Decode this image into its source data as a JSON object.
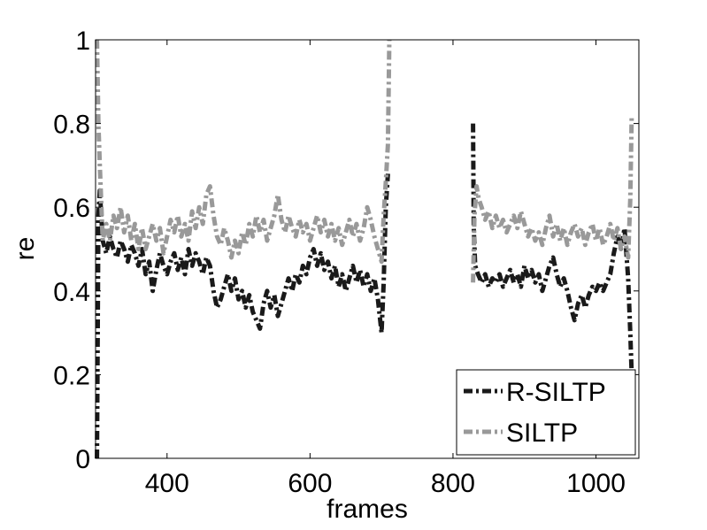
{
  "chart_data": {
    "type": "line",
    "title": "",
    "xlabel": "frames",
    "ylabel": "re",
    "xlim": [
      300,
      1060
    ],
    "ylim": [
      0,
      1
    ],
    "xticks": [
      400,
      600,
      800,
      1000
    ],
    "yticks": [
      0,
      0.2,
      0.4,
      0.6,
      0.8,
      1
    ],
    "xtick_labels": [
      "400",
      "600",
      "800",
      "1000"
    ],
    "ytick_labels": [
      "0",
      "0.2",
      "0.4",
      "0.6",
      "0.8",
      "1"
    ],
    "grid": false,
    "legend_position": "bottom-right",
    "series": [
      {
        "name": "R-SILTP",
        "color": "#1a1a1a",
        "segments": [
          [
            [
              302,
              0.0
            ],
            [
              304,
              0.58
            ],
            [
              306,
              0.64
            ],
            [
              310,
              0.52
            ],
            [
              315,
              0.49
            ],
            [
              320,
              0.53
            ],
            [
              325,
              0.5
            ],
            [
              330,
              0.48
            ],
            [
              335,
              0.52
            ],
            [
              340,
              0.5
            ],
            [
              345,
              0.47
            ],
            [
              350,
              0.51
            ],
            [
              355,
              0.49
            ],
            [
              360,
              0.46
            ],
            [
              365,
              0.5
            ],
            [
              370,
              0.44
            ],
            [
              375,
              0.47
            ],
            [
              380,
              0.4
            ],
            [
              385,
              0.45
            ],
            [
              390,
              0.49
            ],
            [
              395,
              0.46
            ],
            [
              400,
              0.44
            ],
            [
              405,
              0.47
            ],
            [
              410,
              0.49
            ],
            [
              415,
              0.45
            ],
            [
              420,
              0.48
            ],
            [
              425,
              0.44
            ],
            [
              430,
              0.5
            ],
            [
              435,
              0.46
            ],
            [
              440,
              0.49
            ],
            [
              445,
              0.47
            ],
            [
              450,
              0.44
            ],
            [
              455,
              0.48
            ],
            [
              460,
              0.46
            ],
            [
              465,
              0.4
            ],
            [
              470,
              0.36
            ],
            [
              475,
              0.38
            ],
            [
              480,
              0.41
            ],
            [
              485,
              0.44
            ],
            [
              490,
              0.4
            ],
            [
              495,
              0.43
            ],
            [
              500,
              0.38
            ],
            [
              505,
              0.4
            ],
            [
              510,
              0.36
            ],
            [
              515,
              0.39
            ],
            [
              520,
              0.35
            ],
            [
              525,
              0.33
            ],
            [
              530,
              0.31
            ],
            [
              535,
              0.37
            ],
            [
              540,
              0.4
            ],
            [
              545,
              0.36
            ],
            [
              550,
              0.39
            ],
            [
              555,
              0.34
            ],
            [
              560,
              0.37
            ],
            [
              565,
              0.4
            ],
            [
              570,
              0.43
            ],
            [
              575,
              0.4
            ],
            [
              580,
              0.44
            ],
            [
              585,
              0.42
            ],
            [
              590,
              0.46
            ],
            [
              595,
              0.44
            ],
            [
              600,
              0.48
            ],
            [
              605,
              0.5
            ],
            [
              610,
              0.46
            ],
            [
              615,
              0.49
            ],
            [
              620,
              0.45
            ],
            [
              625,
              0.47
            ],
            [
              630,
              0.43
            ],
            [
              635,
              0.46
            ],
            [
              640,
              0.41
            ],
            [
              645,
              0.44
            ],
            [
              650,
              0.4
            ],
            [
              655,
              0.43
            ],
            [
              660,
              0.46
            ],
            [
              665,
              0.42
            ],
            [
              670,
              0.45
            ],
            [
              675,
              0.41
            ],
            [
              680,
              0.44
            ],
            [
              685,
              0.4
            ],
            [
              690,
              0.43
            ],
            [
              695,
              0.38
            ],
            [
              700,
              0.3
            ],
            [
              703,
              0.42
            ],
            [
              706,
              0.6
            ],
            [
              709,
              0.68
            ]
          ],
          [
            [
              828,
              0.8
            ],
            [
              829,
              0.55
            ],
            [
              831,
              0.46
            ],
            [
              835,
              0.44
            ],
            [
              840,
              0.42
            ],
            [
              845,
              0.44
            ],
            [
              850,
              0.41
            ],
            [
              855,
              0.43
            ],
            [
              860,
              0.42
            ],
            [
              865,
              0.44
            ],
            [
              870,
              0.41
            ],
            [
              875,
              0.43
            ],
            [
              880,
              0.45
            ],
            [
              885,
              0.42
            ],
            [
              890,
              0.44
            ],
            [
              895,
              0.41
            ],
            [
              900,
              0.46
            ],
            [
              905,
              0.43
            ],
            [
              910,
              0.45
            ],
            [
              915,
              0.42
            ],
            [
              920,
              0.44
            ],
            [
              925,
              0.4
            ],
            [
              930,
              0.43
            ],
            [
              935,
              0.46
            ],
            [
              940,
              0.48
            ],
            [
              945,
              0.44
            ],
            [
              950,
              0.41
            ],
            [
              955,
              0.43
            ],
            [
              960,
              0.4
            ],
            [
              965,
              0.36
            ],
            [
              970,
              0.33
            ],
            [
              975,
              0.37
            ],
            [
              980,
              0.39
            ],
            [
              985,
              0.36
            ],
            [
              990,
              0.39
            ],
            [
              995,
              0.41
            ],
            [
              1000,
              0.4
            ],
            [
              1005,
              0.42
            ],
            [
              1010,
              0.4
            ],
            [
              1015,
              0.42
            ],
            [
              1020,
              0.44
            ],
            [
              1025,
              0.49
            ],
            [
              1030,
              0.53
            ],
            [
              1035,
              0.5
            ],
            [
              1040,
              0.55
            ],
            [
              1045,
              0.43
            ],
            [
              1048,
              0.3
            ],
            [
              1050,
              0.2
            ]
          ]
        ]
      },
      {
        "name": "SILTP",
        "color": "#999999",
        "segments": [
          [
            [
              302,
              1.0
            ],
            [
              304,
              0.8
            ],
            [
              306,
              0.7
            ],
            [
              310,
              0.52
            ],
            [
              315,
              0.56
            ],
            [
              320,
              0.52
            ],
            [
              325,
              0.58
            ],
            [
              330,
              0.55
            ],
            [
              335,
              0.6
            ],
            [
              340,
              0.54
            ],
            [
              345,
              0.58
            ],
            [
              350,
              0.52
            ],
            [
              355,
              0.56
            ],
            [
              360,
              0.5
            ],
            [
              365,
              0.55
            ],
            [
              370,
              0.5
            ],
            [
              375,
              0.53
            ],
            [
              380,
              0.56
            ],
            [
              385,
              0.52
            ],
            [
              390,
              0.55
            ],
            [
              395,
              0.49
            ],
            [
              400,
              0.53
            ],
            [
              405,
              0.57
            ],
            [
              410,
              0.54
            ],
            [
              415,
              0.58
            ],
            [
              420,
              0.53
            ],
            [
              425,
              0.56
            ],
            [
              430,
              0.52
            ],
            [
              435,
              0.59
            ],
            [
              440,
              0.55
            ],
            [
              445,
              0.6
            ],
            [
              450,
              0.56
            ],
            [
              455,
              0.63
            ],
            [
              460,
              0.65
            ],
            [
              465,
              0.58
            ],
            [
              470,
              0.53
            ],
            [
              475,
              0.51
            ],
            [
              480,
              0.55
            ],
            [
              485,
              0.52
            ],
            [
              490,
              0.48
            ],
            [
              495,
              0.52
            ],
            [
              500,
              0.49
            ],
            [
              505,
              0.54
            ],
            [
              510,
              0.51
            ],
            [
              515,
              0.56
            ],
            [
              520,
              0.53
            ],
            [
              525,
              0.58
            ],
            [
              530,
              0.54
            ],
            [
              535,
              0.57
            ],
            [
              540,
              0.52
            ],
            [
              545,
              0.55
            ],
            [
              550,
              0.58
            ],
            [
              555,
              0.63
            ],
            [
              560,
              0.57
            ],
            [
              565,
              0.54
            ],
            [
              570,
              0.58
            ],
            [
              575,
              0.55
            ],
            [
              580,
              0.53
            ],
            [
              585,
              0.57
            ],
            [
              590,
              0.54
            ],
            [
              595,
              0.56
            ],
            [
              600,
              0.52
            ],
            [
              605,
              0.55
            ],
            [
              610,
              0.58
            ],
            [
              615,
              0.54
            ],
            [
              620,
              0.57
            ],
            [
              625,
              0.53
            ],
            [
              630,
              0.56
            ],
            [
              635,
              0.52
            ],
            [
              640,
              0.55
            ],
            [
              645,
              0.51
            ],
            [
              650,
              0.54
            ],
            [
              655,
              0.57
            ],
            [
              660,
              0.53
            ],
            [
              665,
              0.56
            ],
            [
              670,
              0.52
            ],
            [
              675,
              0.55
            ],
            [
              680,
              0.6
            ],
            [
              685,
              0.57
            ],
            [
              690,
              0.53
            ],
            [
              695,
              0.5
            ],
            [
              700,
              0.47
            ],
            [
              703,
              0.58
            ],
            [
              706,
              0.66
            ],
            [
              709,
              0.75
            ],
            [
              711,
              1.0
            ]
          ],
          [
            [
              828,
              0.42
            ],
            [
              830,
              0.58
            ],
            [
              833,
              0.65
            ],
            [
              836,
              0.62
            ],
            [
              840,
              0.6
            ],
            [
              845,
              0.57
            ],
            [
              850,
              0.59
            ],
            [
              855,
              0.55
            ],
            [
              860,
              0.58
            ],
            [
              865,
              0.55
            ],
            [
              870,
              0.57
            ],
            [
              875,
              0.54
            ],
            [
              880,
              0.56
            ],
            [
              885,
              0.58
            ],
            [
              890,
              0.55
            ],
            [
              895,
              0.59
            ],
            [
              900,
              0.56
            ],
            [
              905,
              0.53
            ],
            [
              910,
              0.55
            ],
            [
              915,
              0.52
            ],
            [
              920,
              0.54
            ],
            [
              925,
              0.51
            ],
            [
              930,
              0.55
            ],
            [
              935,
              0.58
            ],
            [
              940,
              0.53
            ],
            [
              945,
              0.56
            ],
            [
              950,
              0.52
            ],
            [
              955,
              0.55
            ],
            [
              960,
              0.51
            ],
            [
              965,
              0.54
            ],
            [
              970,
              0.56
            ],
            [
              975,
              0.53
            ],
            [
              980,
              0.55
            ],
            [
              985,
              0.51
            ],
            [
              990,
              0.54
            ],
            [
              995,
              0.56
            ],
            [
              1000,
              0.52
            ],
            [
              1005,
              0.55
            ],
            [
              1010,
              0.51
            ],
            [
              1015,
              0.53
            ],
            [
              1020,
              0.56
            ],
            [
              1025,
              0.52
            ],
            [
              1030,
              0.55
            ],
            [
              1035,
              0.5
            ],
            [
              1040,
              0.53
            ],
            [
              1045,
              0.48
            ],
            [
              1048,
              0.62
            ],
            [
              1050,
              0.82
            ]
          ]
        ]
      }
    ]
  }
}
